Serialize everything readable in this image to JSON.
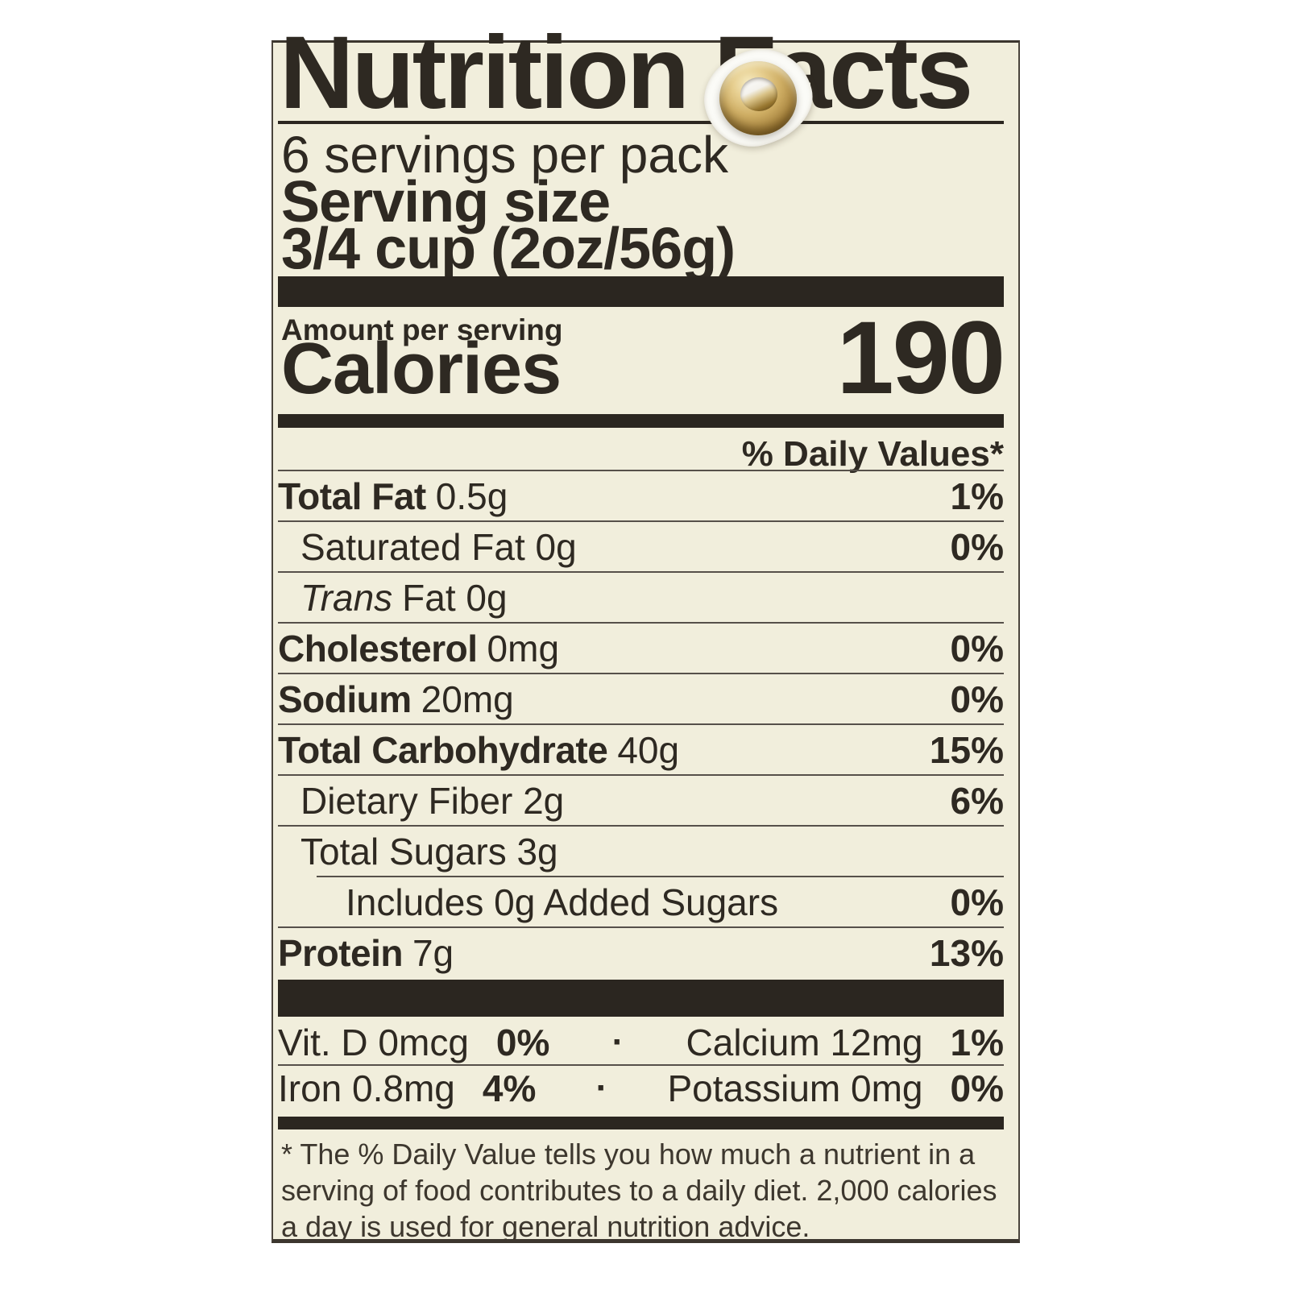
{
  "label": {
    "title": "Nutrition Facts",
    "servings_per_pack": "6 servings per pack",
    "serving_size_label": "Serving size",
    "serving_size_value": "3/4 cup (2oz/56g)",
    "amount_per_serving": "Amount per serving",
    "calories_label": "Calories",
    "calories_value": "190",
    "daily_values_header": "% Daily Values*",
    "rows": [
      {
        "bold": "Total Fat",
        "reg": "0.5g",
        "dv": "1%",
        "indent": 0
      },
      {
        "reg": "Saturated Fat 0g",
        "dv": "0%",
        "indent": 1
      },
      {
        "italic": "Trans",
        "reg": "Fat 0g",
        "dv": "",
        "indent": 1
      },
      {
        "bold": "Cholesterol",
        "reg": "0mg",
        "dv": "0%",
        "indent": 0
      },
      {
        "bold": "Sodium",
        "reg": "20mg",
        "dv": "0%",
        "indent": 0
      },
      {
        "bold": "Total Carbohydrate",
        "reg": "40g",
        "dv": "15%",
        "indent": 0
      },
      {
        "reg": "Dietary Fiber 2g",
        "dv": "6%",
        "indent": 1
      },
      {
        "reg": "Total Sugars 3g",
        "dv": "",
        "indent": 1
      },
      {
        "reg": "Includes 0g Added Sugars",
        "dv": "0%",
        "indent": 2
      },
      {
        "bold": "Protein",
        "reg": "7g",
        "dv": "13%",
        "indent": 0
      }
    ],
    "micronutrients": [
      {
        "left_name": "Vit. D 0mcg",
        "left_dv": "0%",
        "right_name": "Calcium 12mg",
        "right_dv": "1%"
      },
      {
        "left_name": "Iron 0.8mg",
        "left_dv": "4%",
        "right_name": "Potassium 0mg",
        "right_dv": "0%"
      }
    ],
    "separator_dot": "·",
    "footnote": "* The % Daily Value tells you how much a nutrient in a serving of food contributes to a daily diet. 2,000 calories a day is used for general nutrition advice."
  },
  "colors": {
    "paper": "#f1eedc",
    "ink": "#2e2922",
    "hairline": "#56504a",
    "section_bar": "#2b2620",
    "grommet_gold": "#cfae64",
    "grommet_highlight": "#f6ebc2",
    "torn_paper": "#fbfbf7"
  }
}
